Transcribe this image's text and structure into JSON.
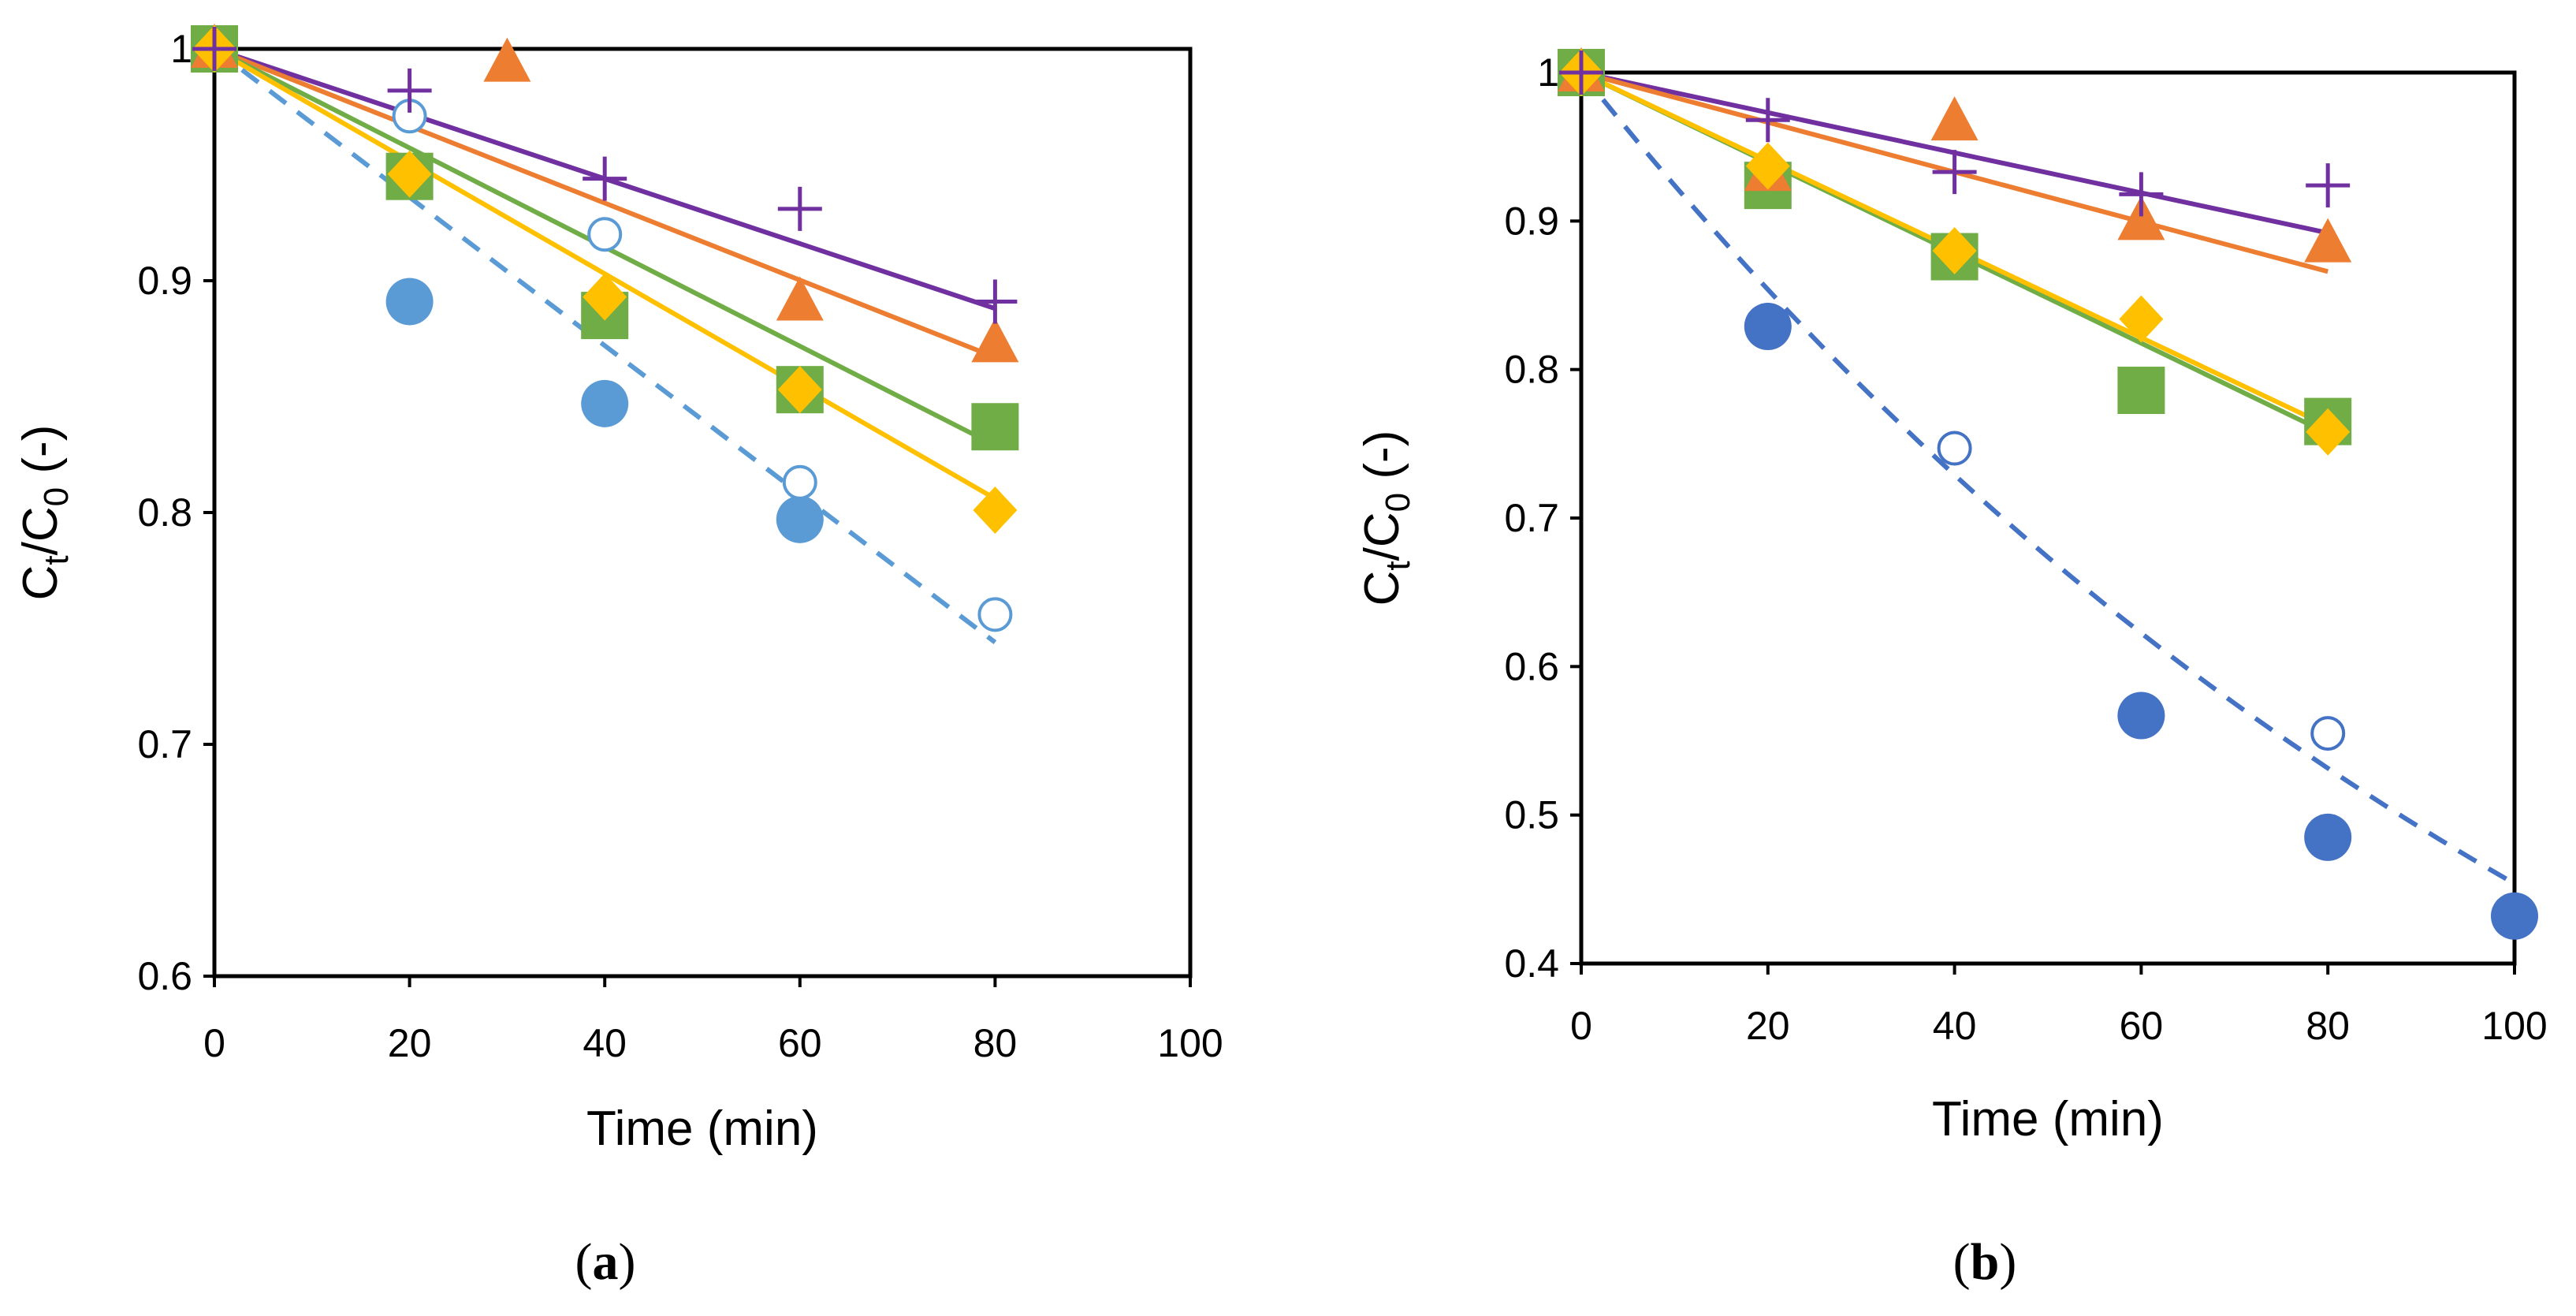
{
  "chart_data": [
    {
      "type": "scatter",
      "panel_label": "(a)",
      "panel_letter": "a",
      "xlabel": "Time (min)",
      "ylabel": "Ct/C0 (-)",
      "ylabel_parts": {
        "c1": "C",
        "s1": "t",
        "slash": "/",
        "c2": "C",
        "s2": "0",
        "tail": " (-)"
      },
      "xlim": [
        0,
        100
      ],
      "ylim": [
        0.6,
        1.0
      ],
      "xticks": [
        "0",
        "20",
        "40",
        "60",
        "80",
        "100"
      ],
      "yticks": [
        "0.6",
        "0.7",
        "0.8",
        "0.9",
        "1"
      ],
      "series": [
        {
          "name": "cross",
          "marker": "plus",
          "color": "#7030A0",
          "x": [
            0,
            20,
            40,
            60,
            80
          ],
          "y": [
            1.0,
            0.982,
            0.944,
            0.931,
            0.891
          ],
          "fit": {
            "style": "solid",
            "x": [
              0,
              80
            ],
            "y": [
              1.0,
              0.888
            ]
          }
        },
        {
          "name": "triangle",
          "marker": "triangle",
          "color": "#ED7D31",
          "x": [
            0,
            30,
            60,
            80
          ],
          "y": [
            1.0,
            0.994,
            0.891,
            0.873
          ],
          "fit": {
            "style": "solid",
            "x": [
              0,
              80
            ],
            "y": [
              1.0,
              0.867
            ]
          }
        },
        {
          "name": "square",
          "marker": "square",
          "color": "#70AD47",
          "x": [
            0,
            20,
            40,
            60,
            80
          ],
          "y": [
            1.0,
            0.945,
            0.885,
            0.853,
            0.837
          ],
          "fit": {
            "style": "solid",
            "x": [
              0,
              80
            ],
            "y": [
              1.0,
              0.829
            ]
          }
        },
        {
          "name": "diamond",
          "marker": "diamond",
          "color": "#FFC000",
          "x": [
            0,
            20,
            40,
            60,
            80
          ],
          "y": [
            1.0,
            0.946,
            0.893,
            0.853,
            0.801
          ],
          "fit": {
            "style": "solid",
            "x": [
              0,
              80
            ],
            "y": [
              1.0,
              0.806
            ]
          }
        },
        {
          "name": "filled-circle",
          "marker": "circle-filled",
          "color": "#5B9BD5",
          "x": [
            0,
            20,
            40,
            60
          ],
          "y": [
            1.0,
            0.891,
            0.847,
            0.797
          ],
          "fit": null
        },
        {
          "name": "open-circle",
          "marker": "circle-open",
          "color": "#5B9BD5",
          "x": [
            0,
            20,
            40,
            60,
            80
          ],
          "y": [
            1.0,
            0.971,
            0.92,
            0.813,
            0.756
          ],
          "fit": {
            "style": "dashed",
            "x": [
              0,
              80
            ],
            "y": [
              1.0,
              0.744
            ]
          }
        }
      ]
    },
    {
      "type": "scatter",
      "panel_label": "(b)",
      "panel_letter": "b",
      "xlabel": "Time (min)",
      "ylabel": "Ct/C0 (-)",
      "ylabel_parts": {
        "c1": "C",
        "s1": "t",
        "slash": "/",
        "c2": "C",
        "s2": "0",
        "tail": " (-)"
      },
      "xlim": [
        0,
        100
      ],
      "ylim": [
        0.4,
        1.0
      ],
      "xticks": [
        "0",
        "20",
        "40",
        "60",
        "80",
        "100"
      ],
      "yticks": [
        "0.4",
        "0.5",
        "0.6",
        "0.7",
        "0.8",
        "0.9",
        "1"
      ],
      "series": [
        {
          "name": "cross",
          "marker": "plus",
          "color": "#7030A0",
          "x": [
            0,
            20,
            40,
            60,
            80
          ],
          "y": [
            1.0,
            0.968,
            0.933,
            0.918,
            0.924
          ],
          "fit": {
            "style": "solid",
            "x": [
              0,
              80
            ],
            "y": [
              1.0,
              0.892
            ]
          }
        },
        {
          "name": "triangle",
          "marker": "triangle",
          "color": "#ED7D31",
          "x": [
            0,
            20,
            40,
            60,
            80
          ],
          "y": [
            1.0,
            0.933,
            0.967,
            0.9,
            0.885
          ],
          "fit": {
            "style": "solid",
            "x": [
              0,
              80
            ],
            "y": [
              1.0,
              0.866
            ]
          }
        },
        {
          "name": "square",
          "marker": "square",
          "color": "#70AD47",
          "x": [
            0,
            20,
            40,
            60,
            80
          ],
          "y": [
            1.0,
            0.924,
            0.876,
            0.786,
            0.765
          ],
          "fit": {
            "style": "solid",
            "x": [
              0,
              80
            ],
            "y": [
              1.0,
              0.757
            ]
          }
        },
        {
          "name": "diamond",
          "marker": "diamond",
          "color": "#FFC000",
          "x": [
            0,
            20,
            40,
            60,
            80
          ],
          "y": [
            1.0,
            0.937,
            0.88,
            0.834,
            0.758
          ],
          "fit": {
            "style": "solid",
            "x": [
              0,
              80
            ],
            "y": [
              1.0,
              0.762
            ]
          }
        },
        {
          "name": "filled-circle",
          "marker": "circle-filled",
          "color": "#4472C4",
          "x": [
            0,
            20,
            60,
            80,
            100
          ],
          "y": [
            1.0,
            0.829,
            0.567,
            0.485,
            0.432
          ],
          "fit": null
        },
        {
          "name": "open-circle",
          "marker": "circle-open",
          "color": "#4472C4",
          "x": [
            40,
            80
          ],
          "y": [
            0.747,
            0.555
          ],
          "fit": {
            "style": "dashed",
            "curve": "exponential",
            "k": 0.0079,
            "x": [
              0,
              100
            ],
            "y": [
              1.0,
              0.454
            ]
          }
        }
      ]
    }
  ]
}
